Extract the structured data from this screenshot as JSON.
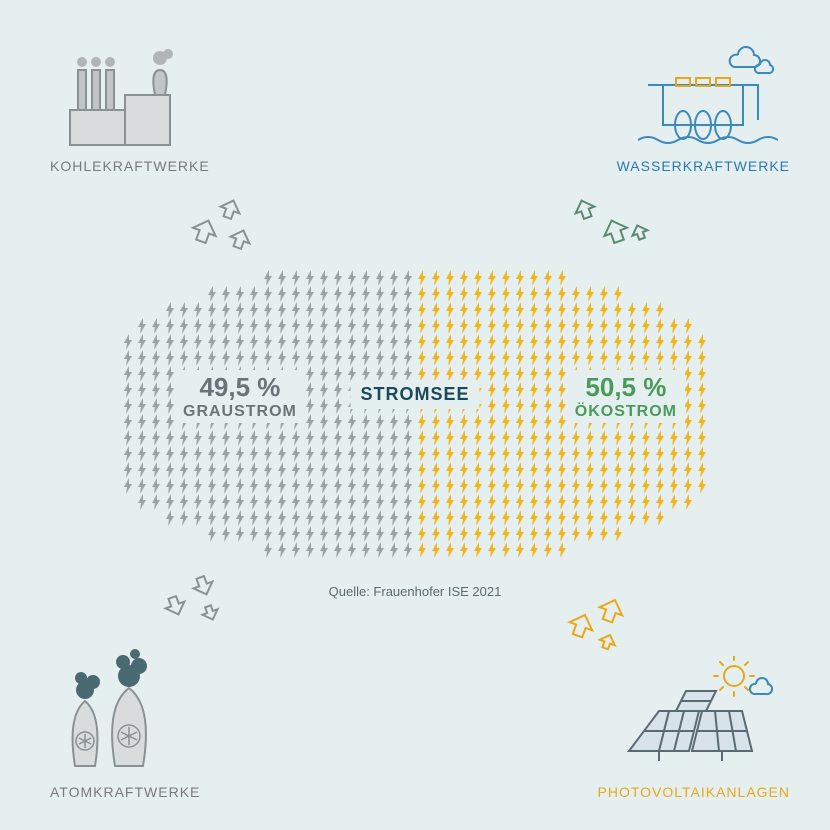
{
  "background_color": "#e6eff0",
  "colors": {
    "gray_label": "#7a7a7a",
    "blue_label": "#2a7ab0",
    "yellow_label": "#e8a817",
    "gray_stat": "#6a7478",
    "green_stat": "#4a9b5a",
    "title": "#1a4a5a",
    "source": "#5a6a72",
    "bolt_gray": "#9aa4a8",
    "bolt_yellow": "#f2b421",
    "icon_gray_fill": "#c0c6c8",
    "icon_gray_stroke": "#8a9194",
    "icon_blue_stroke": "#3a8ac0",
    "icon_yellow_stroke": "#e8a817",
    "icon_dark_teal": "#4a6a72"
  },
  "corners": {
    "tl": {
      "label": "KOHLEKRAFTWERKE"
    },
    "tr": {
      "label": "WASSERKRAFTWERKE"
    },
    "bl": {
      "label": "ATOMKRAFTWERKE"
    },
    "br": {
      "label": "PHOTOVOLTAIKANLAGEN"
    }
  },
  "center": {
    "title": "STROMSEE",
    "left": {
      "percent": "49,5 %",
      "label": "GRAUSTROM"
    },
    "right": {
      "percent": "50,5 %",
      "label": "ÖKOSTROM"
    },
    "split_ratio": 0.495
  },
  "source_text": "Quelle: Frauenhofer ISE 2021",
  "bolt_cloud": {
    "cols": 42,
    "row_widths": [
      22,
      30,
      36,
      40,
      42,
      42,
      42,
      42,
      42,
      42,
      42,
      42,
      42,
      42,
      40,
      36,
      30,
      22
    ]
  }
}
